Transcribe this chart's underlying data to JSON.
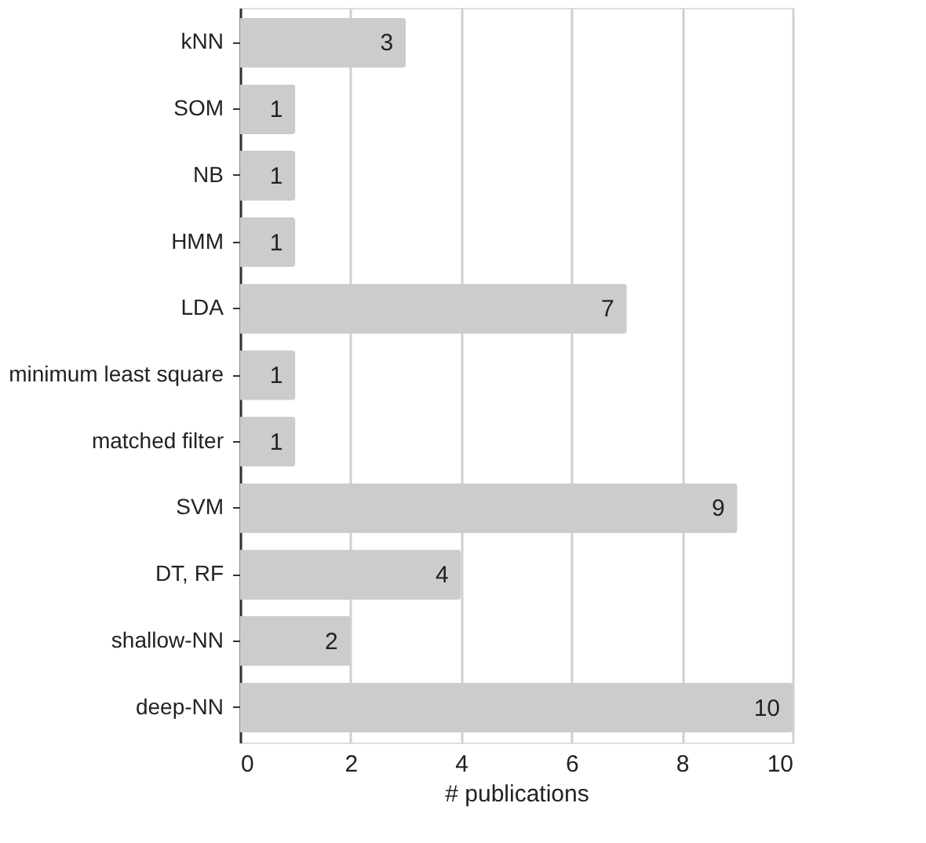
{
  "chart_data": {
    "type": "bar",
    "orientation": "horizontal",
    "xlabel": "# publications",
    "categories": [
      "kNN",
      "SOM",
      "NB",
      "HMM",
      "LDA",
      "minimum least square",
      "matched filter",
      "SVM",
      "DT, RF",
      "shallow-NN",
      "deep-NN"
    ],
    "values": [
      3,
      1,
      1,
      1,
      7,
      1,
      1,
      9,
      4,
      2,
      10
    ],
    "color": "#cccccc",
    "xlim": [
      0,
      10
    ],
    "xticks": [
      0,
      2,
      4,
      6,
      8,
      10
    ],
    "grid": "x",
    "data_labels": true
  }
}
